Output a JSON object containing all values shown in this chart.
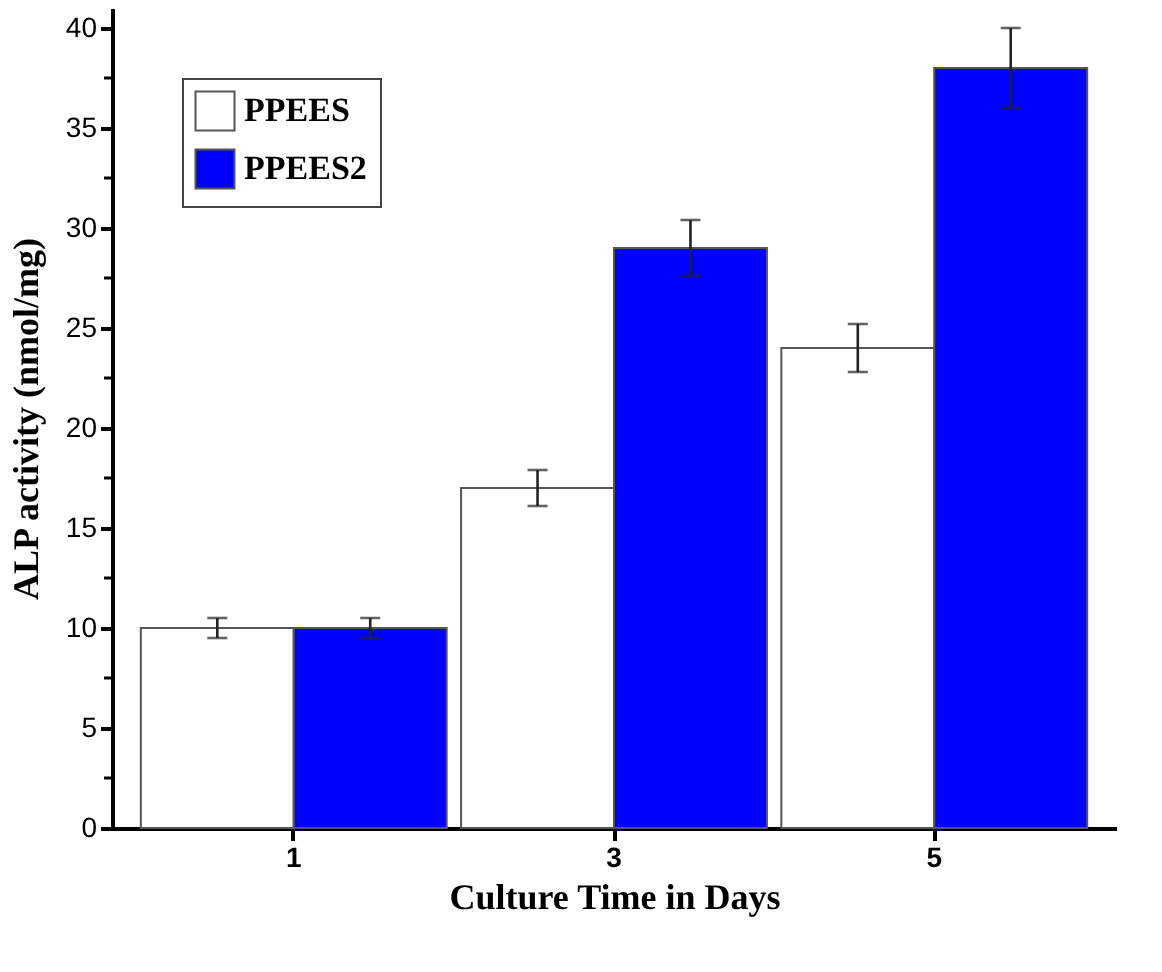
{
  "chart_data": {
    "type": "bar",
    "xlabel": "Culture Time in Days",
    "ylabel": "ALP activity (nmol/mg)",
    "categories": [
      "1",
      "3",
      "5"
    ],
    "series": [
      {
        "name": "PPEES",
        "color": "#ffffff",
        "values": [
          10,
          17,
          24
        ],
        "errors": [
          0.5,
          0.9,
          1.2
        ]
      },
      {
        "name": "PPEES2",
        "color": "#0000ff",
        "values": [
          10,
          29,
          38
        ],
        "errors": [
          0.5,
          1.4,
          2
        ]
      }
    ],
    "ylim": [
      0,
      41
    ],
    "yticks": [
      0,
      {
        "value": 2.5,
        "label": null
      },
      5,
      {
        "value": 7.5,
        "label": null
      },
      10,
      {
        "value": 12.5,
        "label": null
      },
      15,
      {
        "value": 17.5,
        "label": null
      },
      20,
      {
        "value": 22.5,
        "label": null
      },
      25,
      {
        "value": 27.5,
        "label": null
      },
      30,
      {
        "value": 32.5,
        "label": null
      },
      35,
      {
        "value": 37.5,
        "label": null
      },
      40
    ],
    "grid": false,
    "legend": "top left"
  }
}
